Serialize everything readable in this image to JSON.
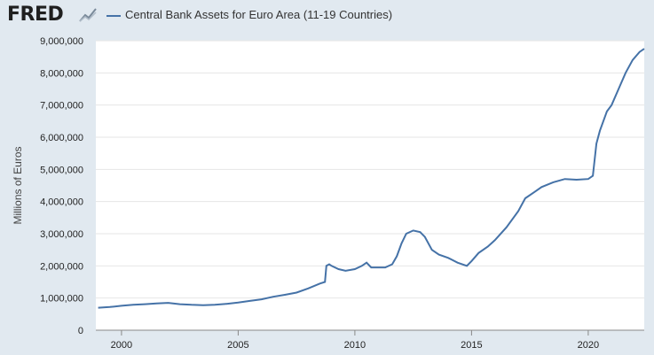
{
  "header": {
    "logo_text": "FRED",
    "logo_icon": "line-chart-icon"
  },
  "chart_data": {
    "type": "line",
    "series": [
      {
        "name": "Central Bank Assets for Euro Area (11-19 Countries)",
        "color": "#4572a7",
        "points": [
          [
            1999.0,
            700000
          ],
          [
            1999.5,
            720000
          ],
          [
            2000.0,
            760000
          ],
          [
            2000.5,
            790000
          ],
          [
            2001.0,
            810000
          ],
          [
            2001.5,
            830000
          ],
          [
            2002.0,
            850000
          ],
          [
            2002.5,
            810000
          ],
          [
            2003.0,
            790000
          ],
          [
            2003.5,
            780000
          ],
          [
            2004.0,
            790000
          ],
          [
            2004.5,
            820000
          ],
          [
            2005.0,
            860000
          ],
          [
            2005.5,
            910000
          ],
          [
            2006.0,
            960000
          ],
          [
            2006.5,
            1040000
          ],
          [
            2007.0,
            1100000
          ],
          [
            2007.5,
            1170000
          ],
          [
            2008.0,
            1300000
          ],
          [
            2008.5,
            1450000
          ],
          [
            2008.72,
            1500000
          ],
          [
            2008.78,
            2000000
          ],
          [
            2008.9,
            2050000
          ],
          [
            2009.0,
            2000000
          ],
          [
            2009.3,
            1900000
          ],
          [
            2009.6,
            1850000
          ],
          [
            2010.0,
            1900000
          ],
          [
            2010.3,
            2000000
          ],
          [
            2010.5,
            2100000
          ],
          [
            2010.7,
            1950000
          ],
          [
            2011.0,
            1950000
          ],
          [
            2011.3,
            1950000
          ],
          [
            2011.6,
            2050000
          ],
          [
            2011.8,
            2300000
          ],
          [
            2012.0,
            2700000
          ],
          [
            2012.2,
            3000000
          ],
          [
            2012.5,
            3100000
          ],
          [
            2012.8,
            3050000
          ],
          [
            2013.0,
            2900000
          ],
          [
            2013.3,
            2500000
          ],
          [
            2013.6,
            2350000
          ],
          [
            2014.0,
            2250000
          ],
          [
            2014.4,
            2100000
          ],
          [
            2014.8,
            2000000
          ],
          [
            2015.0,
            2150000
          ],
          [
            2015.3,
            2400000
          ],
          [
            2015.7,
            2600000
          ],
          [
            2016.0,
            2800000
          ],
          [
            2016.5,
            3200000
          ],
          [
            2017.0,
            3700000
          ],
          [
            2017.3,
            4100000
          ],
          [
            2017.7,
            4300000
          ],
          [
            2018.0,
            4450000
          ],
          [
            2018.5,
            4600000
          ],
          [
            2019.0,
            4700000
          ],
          [
            2019.5,
            4680000
          ],
          [
            2020.0,
            4700000
          ],
          [
            2020.2,
            4800000
          ],
          [
            2020.35,
            5800000
          ],
          [
            2020.5,
            6200000
          ],
          [
            2020.8,
            6800000
          ],
          [
            2021.0,
            7000000
          ],
          [
            2021.3,
            7500000
          ],
          [
            2021.6,
            8000000
          ],
          [
            2021.9,
            8400000
          ],
          [
            2022.2,
            8650000
          ],
          [
            2022.4,
            8750000
          ]
        ]
      }
    ],
    "xlim": [
      1998.9,
      2022.4
    ],
    "ylim": [
      0,
      9000000
    ],
    "xticks": [
      2000,
      2005,
      2010,
      2015,
      2020
    ],
    "yticks": [
      0,
      1000000,
      2000000,
      3000000,
      4000000,
      5000000,
      6000000,
      7000000,
      8000000,
      9000000
    ],
    "ytick_labels": [
      "0",
      "1,000,000",
      "2,000,000",
      "3,000,000",
      "4,000,000",
      "5,000,000",
      "6,000,000",
      "7,000,000",
      "8,000,000",
      "9,000,000"
    ],
    "ylabel": "Millions of Euros",
    "xlabel": "",
    "grid": true,
    "legend_placement": "top-left"
  }
}
